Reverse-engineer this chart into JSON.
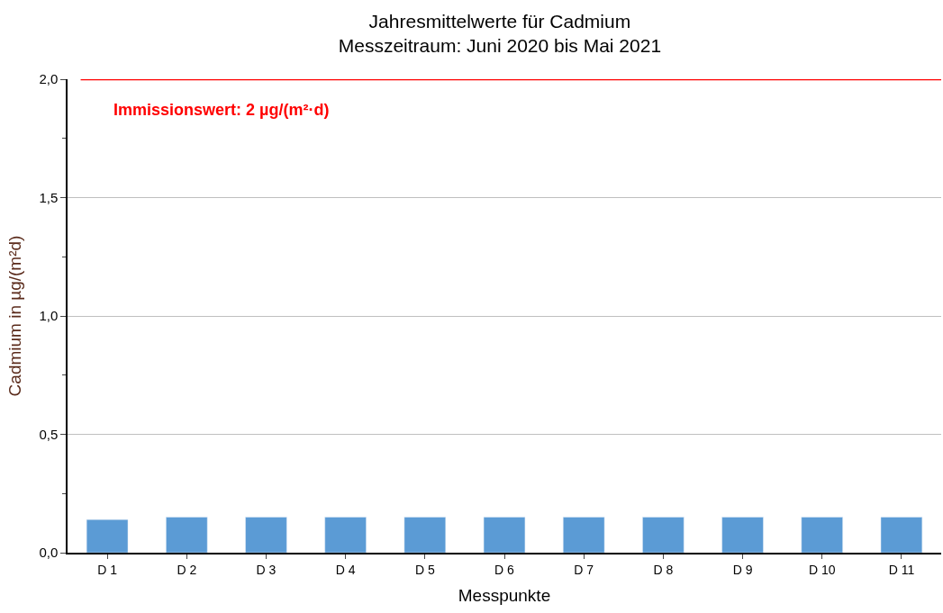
{
  "chart_data": {
    "type": "bar",
    "title": "Jahresmittelwerte für Cadmium",
    "subtitle": "Messzeitraum: Juni 2020 bis Mai 2021",
    "xlabel": "Messpunkte",
    "ylabel": "Cadmium in µg/(m²d)",
    "categories": [
      "D 1",
      "D 2",
      "D 3",
      "D 4",
      "D 5",
      "D 6",
      "D 7",
      "D 8",
      "D 9",
      "D 10",
      "D 11"
    ],
    "values": [
      0.14,
      0.15,
      0.15,
      0.15,
      0.15,
      0.15,
      0.15,
      0.15,
      0.15,
      0.15,
      0.15
    ],
    "color": "#5b9bd5",
    "ylim": [
      0,
      2
    ],
    "yticks": [
      {
        "value": 0,
        "label": "0,0"
      },
      {
        "value": 0.25,
        "label": null
      },
      {
        "value": 0.5,
        "label": "0,5"
      },
      {
        "value": 0.75,
        "label": null
      },
      {
        "value": 1,
        "label": "1,0"
      },
      {
        "value": 1.25,
        "label": null
      },
      {
        "value": 1.5,
        "label": "1,5"
      },
      {
        "value": 1.75,
        "label": null
      },
      {
        "value": 2,
        "label": "2,0"
      }
    ],
    "grid": "y",
    "ref_lines": [
      {
        "axis": "y",
        "value": 2,
        "label": "Immissionswert: 2 µg/(m²·d)",
        "color": "#ff0000"
      }
    ]
  }
}
